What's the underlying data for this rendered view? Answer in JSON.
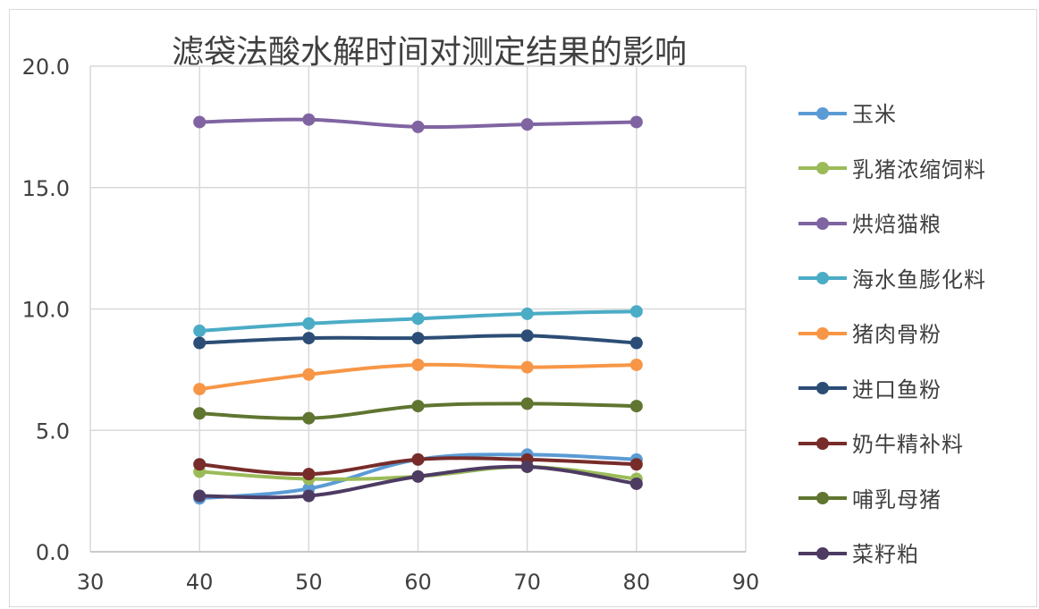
{
  "chart_data": {
    "type": "line",
    "title": "滤袋法酸水解时间对测定结果的影响",
    "xlabel": "",
    "ylabel": "",
    "xlim": [
      30,
      90
    ],
    "ylim": [
      0,
      20
    ],
    "x_ticks": [
      "30",
      "40",
      "50",
      "60",
      "70",
      "80",
      "90"
    ],
    "y_ticks": [
      "0.0",
      "5.0",
      "10.0",
      "15.0",
      "20.0"
    ],
    "grid": true,
    "legend_position": "right",
    "x": [
      40,
      50,
      60,
      70,
      80
    ],
    "series": [
      {
        "name": "玉米",
        "color": "#5B9BD5",
        "values": [
          2.2,
          2.6,
          3.8,
          4.0,
          3.8
        ]
      },
      {
        "name": "乳猪浓缩饲料",
        "color": "#9BBB59",
        "values": [
          3.3,
          3.0,
          3.1,
          3.5,
          3.0
        ]
      },
      {
        "name": "烘焙猫粮",
        "color": "#8064A2",
        "values": [
          17.7,
          17.8,
          17.5,
          17.6,
          17.7
        ]
      },
      {
        "name": "海水鱼膨化料",
        "color": "#4BACC6",
        "values": [
          9.1,
          9.4,
          9.6,
          9.8,
          9.9
        ]
      },
      {
        "name": "猪肉骨粉",
        "color": "#F79646",
        "values": [
          6.7,
          7.3,
          7.7,
          7.6,
          7.7
        ]
      },
      {
        "name": "进口鱼粉",
        "color": "#2C4D75",
        "values": [
          8.6,
          8.8,
          8.8,
          8.9,
          8.6
        ]
      },
      {
        "name": "奶牛精补料",
        "color": "#772C2A",
        "values": [
          3.6,
          3.2,
          3.8,
          3.8,
          3.6
        ]
      },
      {
        "name": "哺乳母猪",
        "color": "#5F7530",
        "values": [
          5.7,
          5.5,
          6.0,
          6.1,
          6.0
        ]
      },
      {
        "name": "菜籽粕",
        "color": "#4D3B62",
        "values": [
          2.3,
          2.3,
          3.1,
          3.5,
          2.8
        ]
      }
    ]
  }
}
